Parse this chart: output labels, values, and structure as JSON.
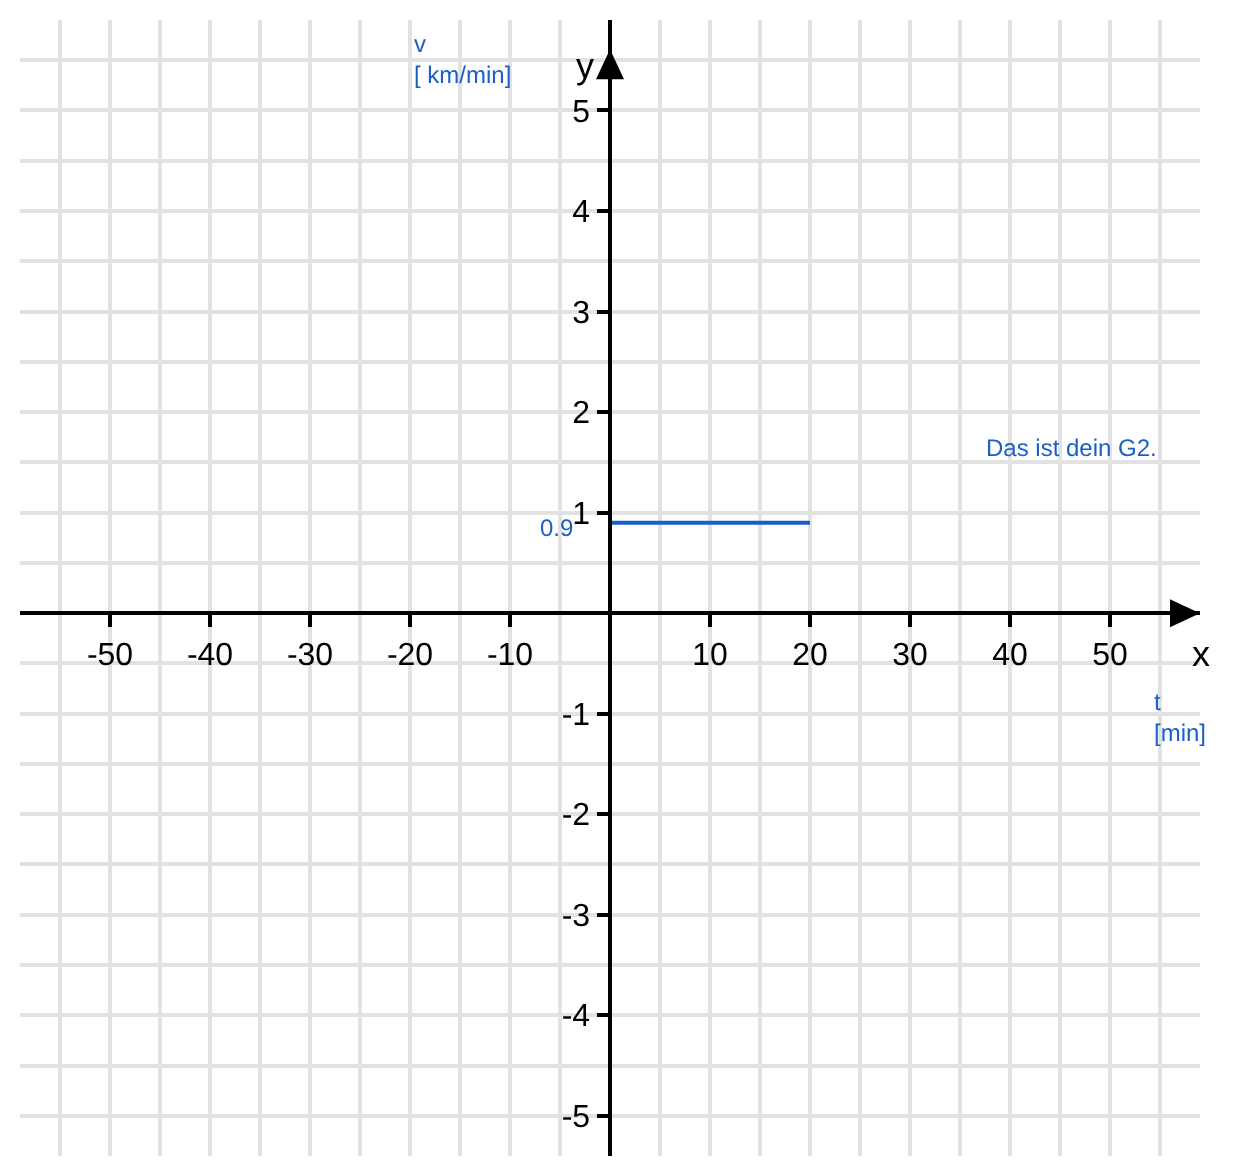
{
  "chart_data": {
    "type": "line",
    "xlabel": "t\n[min]",
    "ylabel": "v\n[ km/min]",
    "x": [
      0,
      20
    ],
    "series": [
      {
        "color": "#1a5fc8",
        "values": [
          0.9,
          0.9
        ],
        "value_labels": [
          "0.9",
          null
        ]
      }
    ],
    "xlim": [
      -59,
      59
    ],
    "ylim": [
      -5.4,
      5.9
    ],
    "xticks": [
      -50,
      -40,
      -30,
      -20,
      -10,
      10,
      20,
      30,
      40,
      50
    ],
    "yticks": [
      -5,
      -4,
      -3,
      -2,
      -1,
      1,
      2,
      3,
      4,
      5
    ],
    "grid": true,
    "marker": "none",
    "line_style": "solid",
    "annotations": [
      "y",
      "x",
      "Das ist dein G2."
    ]
  }
}
